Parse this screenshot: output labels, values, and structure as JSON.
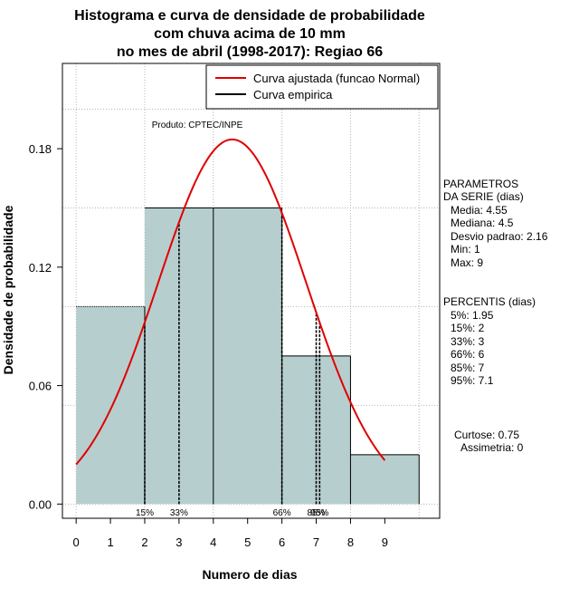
{
  "chart_data": {
    "type": "bar",
    "title_lines": [
      "Histograma e curva de densidade de probabilidade",
      "com chuva acima de 10 mm",
      "no mes de abril (1998-2017): Regiao 66"
    ],
    "xlabel": "Numero de dias",
    "ylabel": "Densidade de probabilidade",
    "xlim": [
      -0.4,
      10.6
    ],
    "ylim": [
      -0.0072,
      0.2232
    ],
    "x_ticks": [
      0,
      1,
      2,
      3,
      4,
      5,
      6,
      7,
      8,
      9
    ],
    "y_ticks": [
      0.0,
      0.06,
      0.12,
      0.18
    ],
    "y_tick_labels": [
      "0.00",
      "0.06",
      "0.12",
      "0.18"
    ],
    "grid": true,
    "grid_x": [
      0,
      2,
      4,
      6,
      8,
      10
    ],
    "grid_y": [
      0.0,
      0.05,
      0.1,
      0.15,
      0.2
    ],
    "bins": [
      {
        "x0": 0,
        "x1": 2,
        "density": 0.1
      },
      {
        "x0": 2,
        "x1": 4,
        "density": 0.15
      },
      {
        "x0": 4,
        "x1": 6,
        "density": 0.15
      },
      {
        "x0": 6,
        "x1": 8,
        "density": 0.075
      },
      {
        "x0": 8,
        "x1": 10,
        "density": 0.025
      }
    ],
    "bar_color": "#b7cece",
    "normal_curve": {
      "mean": 4.55,
      "sd": 2.16,
      "x_from": 0,
      "x_to": 9,
      "color": "#e00000"
    },
    "percentile_lines": [
      {
        "x": 2,
        "label": "15%"
      },
      {
        "x": 3,
        "label": "33%"
      },
      {
        "x": 6,
        "label": "66%"
      },
      {
        "x": 7,
        "label": "85%"
      },
      {
        "x": 7.1,
        "label": "95%"
      }
    ],
    "legend": {
      "position": "top-right",
      "entries": [
        {
          "label": "Curva ajustada (funcao Normal)",
          "color": "#e00000"
        },
        {
          "label": "Curva empirica",
          "color": "#000000"
        }
      ]
    },
    "annotation": "Produto: CPTEC/INPE",
    "side_panel": {
      "params_title": [
        "PARAMETROS",
        "DA SERIE (dias)"
      ],
      "params": [
        "Media: 4.55",
        "Mediana: 4.5",
        "Desvio padrao: 2.16",
        "Min: 1",
        "Max: 9"
      ],
      "percentis_title": "PERCENTIS (dias)",
      "percentis": [
        "5%: 1.95",
        "15%: 2",
        "33%: 3",
        "66%: 6",
        "85%: 7",
        "95%: 7.1"
      ],
      "stats": [
        "Curtose: 0.75",
        "Assimetria: 0"
      ]
    }
  }
}
